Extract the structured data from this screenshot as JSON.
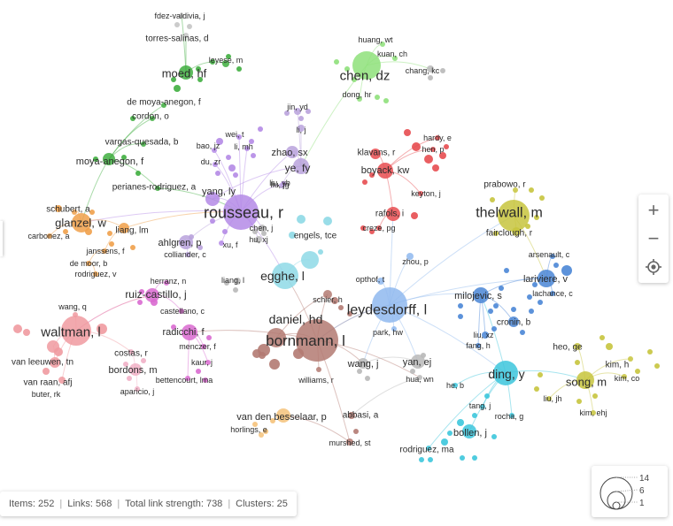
{
  "colors": {
    "red": "#e74c50",
    "green": "#3fae3f",
    "blue": "#4a86d6",
    "yellow": "#c7c43d",
    "purple": "#b48ae6",
    "cyan": "#3cc6dc",
    "orange": "#f0a04a",
    "lavender": "#b9a2dc",
    "pink": "#f09aa0",
    "magenta": "#d96ad0",
    "brown": "#b37a72",
    "lightblue": "#8fb8ee",
    "gray": "#b8b8b8",
    "lightgreen": "#8ee07a",
    "lightcyan": "#8ed9e6",
    "lightorange": "#f5c27a",
    "lightyellow": "#dada85",
    "lightpink": "#f1b0c6",
    "gray2": "#c5c5c5"
  },
  "nodes": [
    {
      "label": "waltman, l",
      "color": "pink",
      "size": 14
    },
    {
      "label": "van leeuwen, tn",
      "color": "pink",
      "size": 4
    },
    {
      "label": "van raan, afj",
      "color": "pink",
      "size": 4
    },
    {
      "label": "buter, rk",
      "color": "pink",
      "size": 2
    },
    {
      "label": "wang, q",
      "color": "pink",
      "size": 2
    },
    {
      "label": "bornmann, l",
      "color": "brown",
      "size": 14
    },
    {
      "label": "daniel, hd",
      "color": "brown",
      "size": 8
    },
    {
      "label": "schier, h",
      "color": "brown",
      "size": 2
    },
    {
      "label": "williams, r",
      "color": "brown",
      "size": 2
    },
    {
      "label": "rousseau, r",
      "color": "purple",
      "size": 12
    },
    {
      "label": "yang, ly",
      "color": "purple",
      "size": 5
    },
    {
      "label": "wei, t",
      "color": "purple",
      "size": 2
    },
    {
      "label": "bao, jz",
      "color": "purple",
      "size": 2
    },
    {
      "label": "li, mh",
      "color": "purple",
      "size": 2
    },
    {
      "label": "du, zr",
      "color": "purple",
      "size": 2
    },
    {
      "label": "liu, jg",
      "color": "purple",
      "size": 2
    },
    {
      "label": "xu, f",
      "color": "purple",
      "size": 2
    },
    {
      "label": "leydesdorff, l",
      "color": "lightblue",
      "size": 12
    },
    {
      "label": "opthof, t",
      "color": "lightblue",
      "size": 2
    },
    {
      "label": "zhou, p",
      "color": "lightblue",
      "size": 2
    },
    {
      "label": "park, hw",
      "color": "lightblue",
      "size": 2
    },
    {
      "label": "thelwall, m",
      "color": "yellow",
      "size": 11
    },
    {
      "label": "prabowo, r",
      "color": "yellow",
      "size": 2
    },
    {
      "label": "fairclough, r",
      "color": "yellow",
      "size": 3
    },
    {
      "label": "chen, dz",
      "color": "lightgreen",
      "size": 9
    },
    {
      "label": "huang, wt",
      "color": "lightgreen",
      "size": 2
    },
    {
      "label": "kuan, ch",
      "color": "lightgreen",
      "size": 2
    },
    {
      "label": "dong, hr",
      "color": "lightgreen",
      "size": 2
    },
    {
      "label": "chang, kc",
      "color": "gray",
      "size": 2
    },
    {
      "label": "egghe, l",
      "color": "lightcyan",
      "size": 8
    },
    {
      "label": "engels, tce",
      "color": "lightcyan",
      "size": 2
    },
    {
      "label": "glanzel, w",
      "color": "orange",
      "size": 6
    },
    {
      "label": "schubert, a",
      "color": "orange",
      "size": 2
    },
    {
      "label": "carbonez, a",
      "color": "orange",
      "size": 2
    },
    {
      "label": "liang, lm",
      "color": "orange",
      "size": 3
    },
    {
      "label": "janssens, f",
      "color": "orange",
      "size": 2
    },
    {
      "label": "de moor, b",
      "color": "orange",
      "size": 2
    },
    {
      "label": "rodriguez, v",
      "color": "orange",
      "size": 2
    },
    {
      "label": "moya-anegon, f",
      "color": "green",
      "size": 4
    },
    {
      "label": "de moya-anegon, f",
      "color": "green",
      "size": 2
    },
    {
      "label": "cordon, o",
      "color": "green",
      "size": 2
    },
    {
      "label": "vargas-quesada, b",
      "color": "green",
      "size": 2
    },
    {
      "label": "perianes-rodriguez, a",
      "color": "green",
      "size": 2
    },
    {
      "label": "moed, hf",
      "color": "green",
      "size": 5
    },
    {
      "label": "leyese, m",
      "color": "green",
      "size": 2
    },
    {
      "label": "fdez-valdivia, j",
      "color": "gray2",
      "size": 2
    },
    {
      "label": "torres-salinas, d",
      "color": "gray2",
      "size": 2
    },
    {
      "label": "ding, y",
      "color": "cyan",
      "size": 8
    },
    {
      "label": "bollen, j",
      "color": "cyan",
      "size": 4
    },
    {
      "label": "rodriguez, ma",
      "color": "cyan",
      "size": 2
    },
    {
      "label": "tang, j",
      "color": "cyan",
      "size": 2
    },
    {
      "label": "rocha, g",
      "color": "cyan",
      "size": 2
    },
    {
      "label": "he, b",
      "color": "cyan",
      "size": 2
    },
    {
      "label": "song, m",
      "color": "yellow",
      "size": 6
    },
    {
      "label": "heo, ge",
      "color": "yellow",
      "size": 2
    },
    {
      "label": "kim, h",
      "color": "yellow",
      "size": 2
    },
    {
      "label": "kim, co",
      "color": "yellow",
      "size": 2
    },
    {
      "label": "liu, jh",
      "color": "yellow",
      "size": 2
    },
    {
      "label": "kim, ehj",
      "color": "yellow",
      "size": 2
    },
    {
      "label": "milojevic, s",
      "color": "blue",
      "size": 5
    },
    {
      "label": "lariviere, v",
      "color": "blue",
      "size": 5
    },
    {
      "label": "arsenault, c",
      "color": "blue",
      "size": 2
    },
    {
      "label": "lachance, c",
      "color": "blue",
      "size": 2
    },
    {
      "label": "cronin, b",
      "color": "blue",
      "size": 3
    },
    {
      "label": "liu, xz",
      "color": "blue",
      "size": 2
    },
    {
      "label": "fang, h",
      "color": "blue",
      "size": 2
    },
    {
      "label": "boyack, kw",
      "color": "red",
      "size": 5
    },
    {
      "label": "klavans, r",
      "color": "red",
      "size": 3
    },
    {
      "label": "hardy, e",
      "color": "red",
      "size": 2
    },
    {
      "label": "hen, p",
      "color": "red",
      "size": 2
    },
    {
      "label": "keyton, j",
      "color": "red",
      "size": 2
    },
    {
      "label": "rafols, i",
      "color": "red",
      "size": 4
    },
    {
      "label": "creze, pg",
      "color": "red",
      "size": 2
    },
    {
      "label": "ruiz-castillo, j",
      "color": "magenta",
      "size": 5
    },
    {
      "label": "herranz, n",
      "color": "magenta",
      "size": 2
    },
    {
      "label": "castellano, c",
      "color": "magenta",
      "size": 2
    },
    {
      "label": "radicchi, f",
      "color": "magenta",
      "size": 4
    },
    {
      "label": "menczer, f",
      "color": "magenta",
      "size": 2
    },
    {
      "label": "kaur, j",
      "color": "magenta",
      "size": 2
    },
    {
      "label": "bettencourt, lma",
      "color": "magenta",
      "size": 2
    },
    {
      "label": "costas, r",
      "color": "lightpink",
      "size": 2
    },
    {
      "label": "bordons, m",
      "color": "lightpink",
      "size": 4
    },
    {
      "label": "aparicio, j",
      "color": "lightpink",
      "size": 2
    },
    {
      "label": "ahlgren, p",
      "color": "lavender",
      "size": 4
    },
    {
      "label": "colliander, c",
      "color": "lavender",
      "size": 2
    },
    {
      "label": "zhao, sx",
      "color": "lavender",
      "size": 4
    },
    {
      "label": "ye, fy",
      "color": "lavender",
      "size": 5
    },
    {
      "label": "jin, yd",
      "color": "lavender",
      "size": 2
    },
    {
      "label": "li, j",
      "color": "lavender",
      "size": 2
    },
    {
      "label": "liu, yb",
      "color": "lavender",
      "size": 2
    },
    {
      "label": "chen, j",
      "color": "gray",
      "size": 2
    },
    {
      "label": "hu, xj",
      "color": "gray",
      "size": 2
    },
    {
      "label": "liang, l",
      "color": "gray",
      "size": 2
    },
    {
      "label": "wang, j",
      "color": "gray",
      "size": 3
    },
    {
      "label": "yan, ej",
      "color": "gray",
      "size": 4
    },
    {
      "label": "hua, wn",
      "color": "gray",
      "size": 2
    },
    {
      "label": "abbasi, a",
      "color": "brown",
      "size": 2
    },
    {
      "label": "murshed, st",
      "color": "brown",
      "size": 2
    },
    {
      "label": "van den besselaar, p",
      "color": "lightorange",
      "size": 4
    },
    {
      "label": "horlings, e",
      "color": "lightorange",
      "size": 2
    }
  ],
  "zoom": {
    "plus": "+",
    "minus": "−",
    "locate": "◎"
  },
  "status": {
    "items": "Items: 252",
    "links": "Links: 568",
    "strength": "Total link strength: 738",
    "clusters": "Clusters: 25"
  },
  "legend": {
    "max": "14",
    "mid": "6",
    "min": "1"
  }
}
